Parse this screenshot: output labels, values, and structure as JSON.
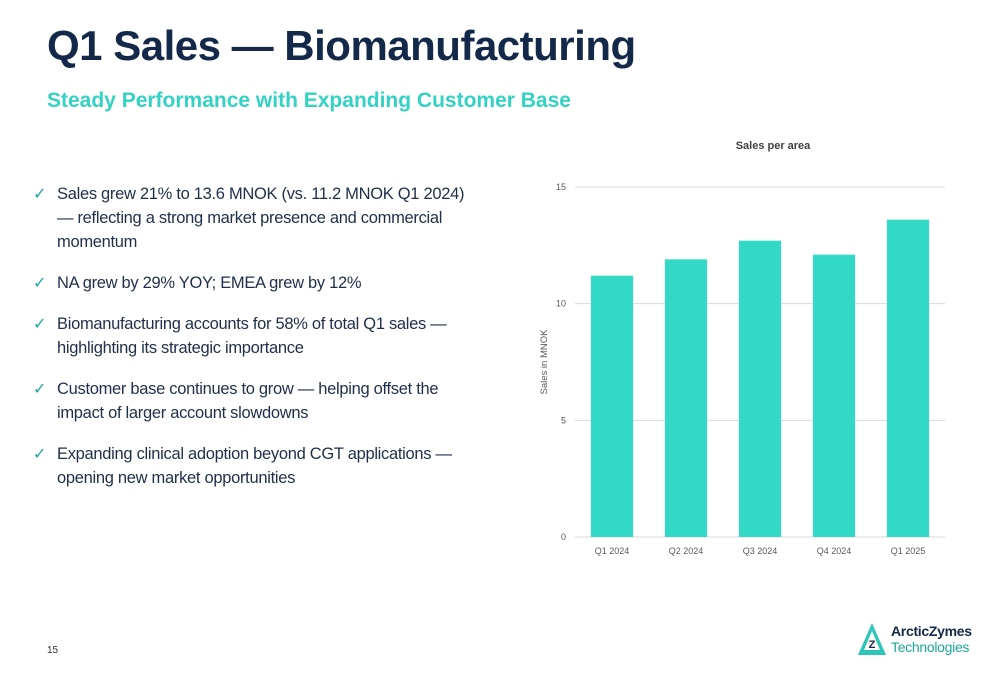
{
  "slide": {
    "title": "Q1 Sales — Biomanufacturing",
    "subtitle": "Steady Performance with Expanding Customer Base",
    "page_number": "15",
    "bullets": [
      "Sales grew 21% to 13.6 MNOK (vs. 11.2 MNOK Q1 2024) — reflecting a strong market presence and commercial momentum",
      "NA grew by 29% YOY; EMEA grew by 12%",
      "Biomanufacturing accounts for 58% of total Q1 sales — highlighting its strategic importance",
      "Customer base continues to grow — helping offset the impact of larger account slowdowns",
      "Expanding clinical adoption beyond CGT applications — opening new market opportunities"
    ],
    "check_glyph": "✓"
  },
  "logo": {
    "name": "ArcticZymes",
    "subtitle": "Technologies",
    "icon": "arcticzymes-logo-icon"
  },
  "colors": {
    "title": "#14294a",
    "accent": "#33d2c3",
    "bar": "#33d9c6",
    "check": "#1aa99a"
  },
  "chart_data": {
    "type": "bar",
    "title": "Sales per area",
    "xlabel": "",
    "ylabel": "Sales in MNOK",
    "categories": [
      "Q1 2024",
      "Q2 2024",
      "Q3 2024",
      "Q4 2024",
      "Q1 2025"
    ],
    "values": [
      11.2,
      11.9,
      12.7,
      12.1,
      13.6
    ],
    "yticks": [
      0,
      5,
      10,
      15
    ],
    "ylim": [
      0,
      15
    ],
    "grid": true,
    "legend": "none"
  }
}
